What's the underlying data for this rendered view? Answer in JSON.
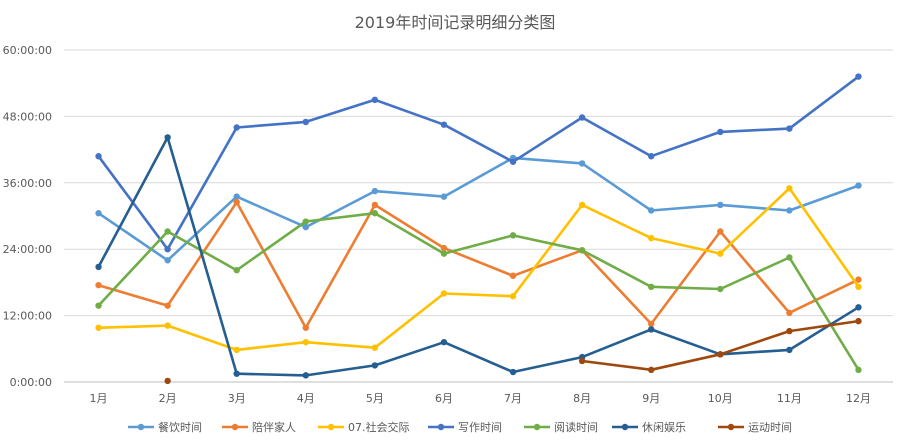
{
  "chart_data": {
    "type": "line",
    "title": "2019年时间记录明细分类图",
    "categories": [
      "1月",
      "2月",
      "3月",
      "4月",
      "5月",
      "6月",
      "7月",
      "8月",
      "9月",
      "10月",
      "11月",
      "12月"
    ],
    "y_tick_labels": [
      "0:00:00",
      "12:00:00",
      "24:00:00",
      "36:00:00",
      "48:00:00",
      "60:00:00"
    ],
    "ylim_hours": [
      0,
      60
    ],
    "y_unit": "hours (h:mm:ss)",
    "grid": true,
    "legend_position": "bottom",
    "series": [
      {
        "name": "餐饮时间",
        "color": "#5B9BD5",
        "values": [
          30.5,
          22.0,
          33.5,
          28.0,
          34.5,
          33.5,
          40.5,
          39.5,
          31.0,
          32.0,
          31.0,
          35.5
        ]
      },
      {
        "name": "陪伴家人",
        "color": "#ED7D31",
        "values": [
          17.5,
          13.8,
          32.5,
          9.8,
          32.0,
          24.2,
          19.2,
          23.8,
          10.5,
          27.2,
          12.5,
          18.5
        ]
      },
      {
        "name": "07.社会交际",
        "color": "#FFC000",
        "values": [
          9.8,
          10.2,
          5.8,
          7.2,
          6.2,
          16.0,
          15.5,
          32.0,
          26.0,
          23.2,
          35.0,
          17.2
        ]
      },
      {
        "name": "写作时间",
        "color": "#4472C4",
        "values": [
          40.8,
          24.0,
          46.0,
          47.0,
          51.0,
          46.5,
          39.8,
          47.8,
          40.8,
          45.2,
          45.8,
          55.2
        ]
      },
      {
        "name": "阅读时间",
        "color": "#70AD47",
        "values": [
          13.8,
          27.2,
          20.2,
          29.0,
          30.5,
          23.2,
          26.5,
          23.8,
          17.2,
          16.8,
          22.5,
          2.2
        ]
      },
      {
        "name": "休闲娱乐",
        "color": "#255E91",
        "values": [
          20.8,
          44.2,
          1.5,
          1.2,
          3.0,
          7.2,
          1.8,
          4.5,
          9.5,
          5.0,
          5.8,
          13.5
        ]
      },
      {
        "name": "运动时间",
        "color": "#9E480E",
        "values": [
          null,
          0.2,
          null,
          null,
          null,
          null,
          null,
          3.8,
          2.2,
          5.0,
          9.2,
          11.0
        ]
      }
    ]
  }
}
